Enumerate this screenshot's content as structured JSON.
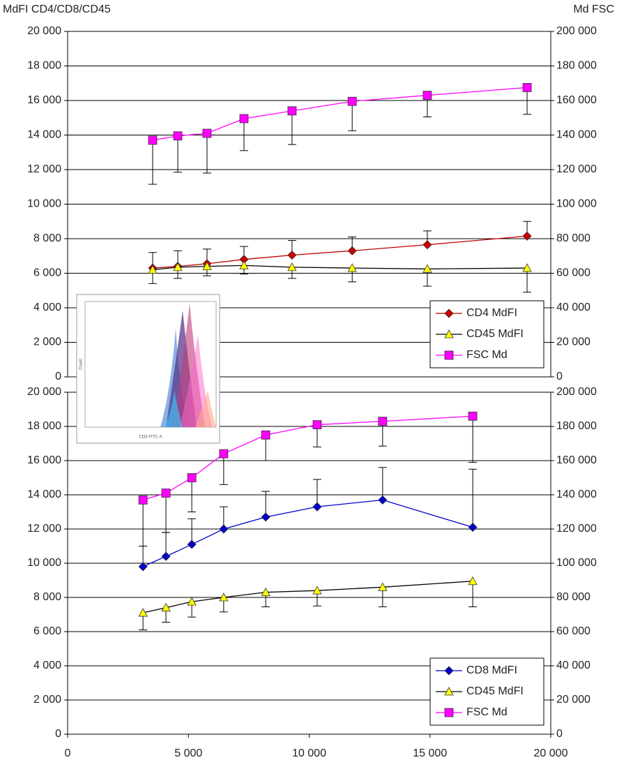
{
  "chart_data": [
    {
      "type": "line",
      "y_label": "MdFI CD4/CD8/CD45",
      "y2_label": "Md FSC",
      "x": [
        3520,
        4560,
        5770,
        7300,
        9290,
        11780,
        14890,
        19020
      ],
      "xlim": [
        0,
        20000
      ],
      "ylim": [
        0,
        20000
      ],
      "y2lim": [
        0,
        200000
      ],
      "yticks": [
        0,
        {
          "value": 2000,
          "label": "2 000"
        },
        {
          "value": 4000,
          "label": "4 000"
        },
        {
          "value": 6000,
          "label": "6 000"
        },
        {
          "value": 8000,
          "label": "8 000"
        },
        {
          "value": 10000,
          "label": "10 000"
        },
        {
          "value": 12000,
          "label": "12 000"
        },
        {
          "value": 14000,
          "label": "14 000"
        },
        {
          "value": 16000,
          "label": "16 000"
        },
        {
          "value": 18000,
          "label": "18 000"
        },
        {
          "value": 20000,
          "label": "20 000"
        }
      ],
      "y2ticks": [
        0,
        {
          "value": 20000,
          "label": "20 000"
        },
        {
          "value": 40000,
          "label": "40 000"
        },
        {
          "value": 60000,
          "label": "60 000"
        },
        {
          "value": 80000,
          "label": "80 000"
        },
        {
          "value": 100000,
          "label": "100 000"
        },
        {
          "value": 120000,
          "label": "120 000"
        },
        {
          "value": 140000,
          "label": "140 000"
        },
        {
          "value": 160000,
          "label": "160 000"
        },
        {
          "value": 180000,
          "label": "180 000"
        },
        {
          "value": 200000,
          "label": "200 000"
        }
      ],
      "grid": true,
      "legend": "lower right",
      "series": [
        {
          "name": "CD4 MdFI",
          "color": "#c00000",
          "marker": "diamond",
          "marker_color": "#cc0000",
          "error_direction": "up",
          "values": [
            6300,
            6400,
            6550,
            6800,
            7050,
            7300,
            7650,
            8150
          ],
          "errors": [
            900,
            900,
            850,
            750,
            850,
            800,
            800,
            850
          ]
        },
        {
          "name": "CD45 MdFI",
          "color": "#000000",
          "marker": "triangle",
          "marker_color": "#ffff00",
          "error_direction": "down",
          "values": [
            6200,
            6350,
            6400,
            6450,
            6350,
            6300,
            6250,
            6300
          ],
          "errors": [
            800,
            650,
            550,
            500,
            650,
            800,
            1000,
            1400
          ]
        },
        {
          "name": "FSC Md",
          "color": "#ff00ff",
          "marker": "square",
          "marker_color": "#ff00ff",
          "error_direction": "down",
          "axis": "y2",
          "values": [
            137000,
            139500,
            141000,
            149500,
            154000,
            159500,
            163000,
            167500
          ],
          "errors": [
            25500,
            21000,
            23000,
            18500,
            19500,
            17000,
            12500,
            15500
          ]
        }
      ]
    },
    {
      "type": "line",
      "x": [
        3120,
        4070,
        5140,
        6460,
        8200,
        10330,
        13040,
        16770
      ],
      "xlim": [
        0,
        20000
      ],
      "ylim": [
        0,
        20000
      ],
      "y2lim": [
        0,
        200000
      ],
      "xticks": [
        0,
        {
          "value": 5000,
          "label": "5 000"
        },
        {
          "value": 10000,
          "label": "10 000"
        },
        {
          "value": 15000,
          "label": "15 000"
        },
        {
          "value": 20000,
          "label": "20 000"
        }
      ],
      "yticks": [
        0,
        {
          "value": 2000,
          "label": "2 000"
        },
        {
          "value": 4000,
          "label": "4 000"
        },
        {
          "value": 6000,
          "label": "6 000"
        },
        {
          "value": 8000,
          "label": "8 000"
        },
        {
          "value": 10000,
          "label": "10 000"
        },
        {
          "value": 12000,
          "label": "12 000"
        },
        {
          "value": 14000,
          "label": "14 000"
        },
        {
          "value": 16000,
          "label": "16 000"
        },
        {
          "value": 18000,
          "label": "18 000"
        },
        {
          "value": 20000,
          "label": "20 000"
        }
      ],
      "y2ticks": [
        0,
        {
          "value": 20000,
          "label": "20 000"
        },
        {
          "value": 40000,
          "label": "40 000"
        },
        {
          "value": 60000,
          "label": "60 000"
        },
        {
          "value": 80000,
          "label": "80 000"
        },
        {
          "value": 100000,
          "label": "100 000"
        },
        {
          "value": 120000,
          "label": "120 000"
        },
        {
          "value": 140000,
          "label": "140 000"
        },
        {
          "value": 160000,
          "label": "160 000"
        },
        {
          "value": 180000,
          "label": "180 000"
        },
        {
          "value": 200000,
          "label": "200 000"
        }
      ],
      "grid": true,
      "legend": "lower right",
      "series": [
        {
          "name": "CD8 MdFI",
          "color": "#0000cc",
          "marker": "diamond",
          "marker_color": "#0000cc",
          "error_direction": "up",
          "values": [
            9800,
            10400,
            11100,
            12000,
            12700,
            13300,
            13700,
            12100
          ],
          "errors": [
            1200,
            1400,
            1500,
            1300,
            1500,
            1600,
            1900,
            3400
          ]
        },
        {
          "name": "CD45 MdFI",
          "color": "#000000",
          "marker": "triangle",
          "marker_color": "#ffff00",
          "error_direction": "down",
          "values": [
            7100,
            7400,
            7750,
            8000,
            8300,
            8400,
            8600,
            8950
          ],
          "errors": [
            1000,
            850,
            900,
            850,
            850,
            900,
            1150,
            1500
          ]
        },
        {
          "name": "FSC Md",
          "color": "#ff00ff",
          "marker": "square",
          "marker_color": "#ff00ff",
          "error_direction": "down",
          "axis": "y2",
          "values": [
            137000,
            141000,
            150000,
            164000,
            175000,
            181000,
            183000,
            186000
          ],
          "errors": [
            27000,
            23000,
            20000,
            18000,
            15000,
            13000,
            14500,
            27000
          ]
        }
      ]
    }
  ],
  "inset": {
    "y_label": "Count",
    "x_label": "CD3 FITC-A"
  }
}
